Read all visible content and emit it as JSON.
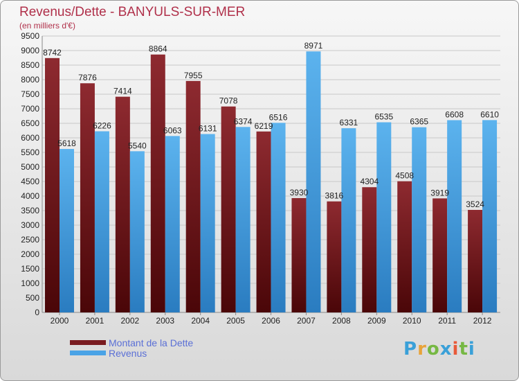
{
  "title": "Revenus/Dette - BANYULS-SUR-MER",
  "subtitle": "(en milliers d'€)",
  "logo_text": "Proxiti",
  "colors": {
    "dette": "#7a1c20",
    "revenus": "#4aa3e6",
    "title": "#b0304a",
    "legend_text": "#5a6fd6"
  },
  "chart_data": {
    "type": "bar",
    "title": "Revenus/Dette - BANYULS-SUR-MER",
    "ylabel": "(en milliers d'€)",
    "ylim": [
      0,
      9500
    ],
    "ytick_step": 500,
    "grid": true,
    "legend": "bottom-left",
    "categories": [
      "2000",
      "2001",
      "2002",
      "2003",
      "2004",
      "2005",
      "2006",
      "2007",
      "2008",
      "2009",
      "2010",
      "2011",
      "2012"
    ],
    "series": [
      {
        "name": "Montant de la Dette",
        "values": [
          8742,
          7876,
          7414,
          8864,
          7955,
          7078,
          6219,
          3930,
          3816,
          4304,
          4508,
          3919,
          3524
        ]
      },
      {
        "name": "Revenus",
        "values": [
          5618,
          6226,
          5540,
          6063,
          6131,
          6374,
          6516,
          8971,
          6331,
          6535,
          6365,
          6608,
          6610
        ]
      }
    ]
  }
}
